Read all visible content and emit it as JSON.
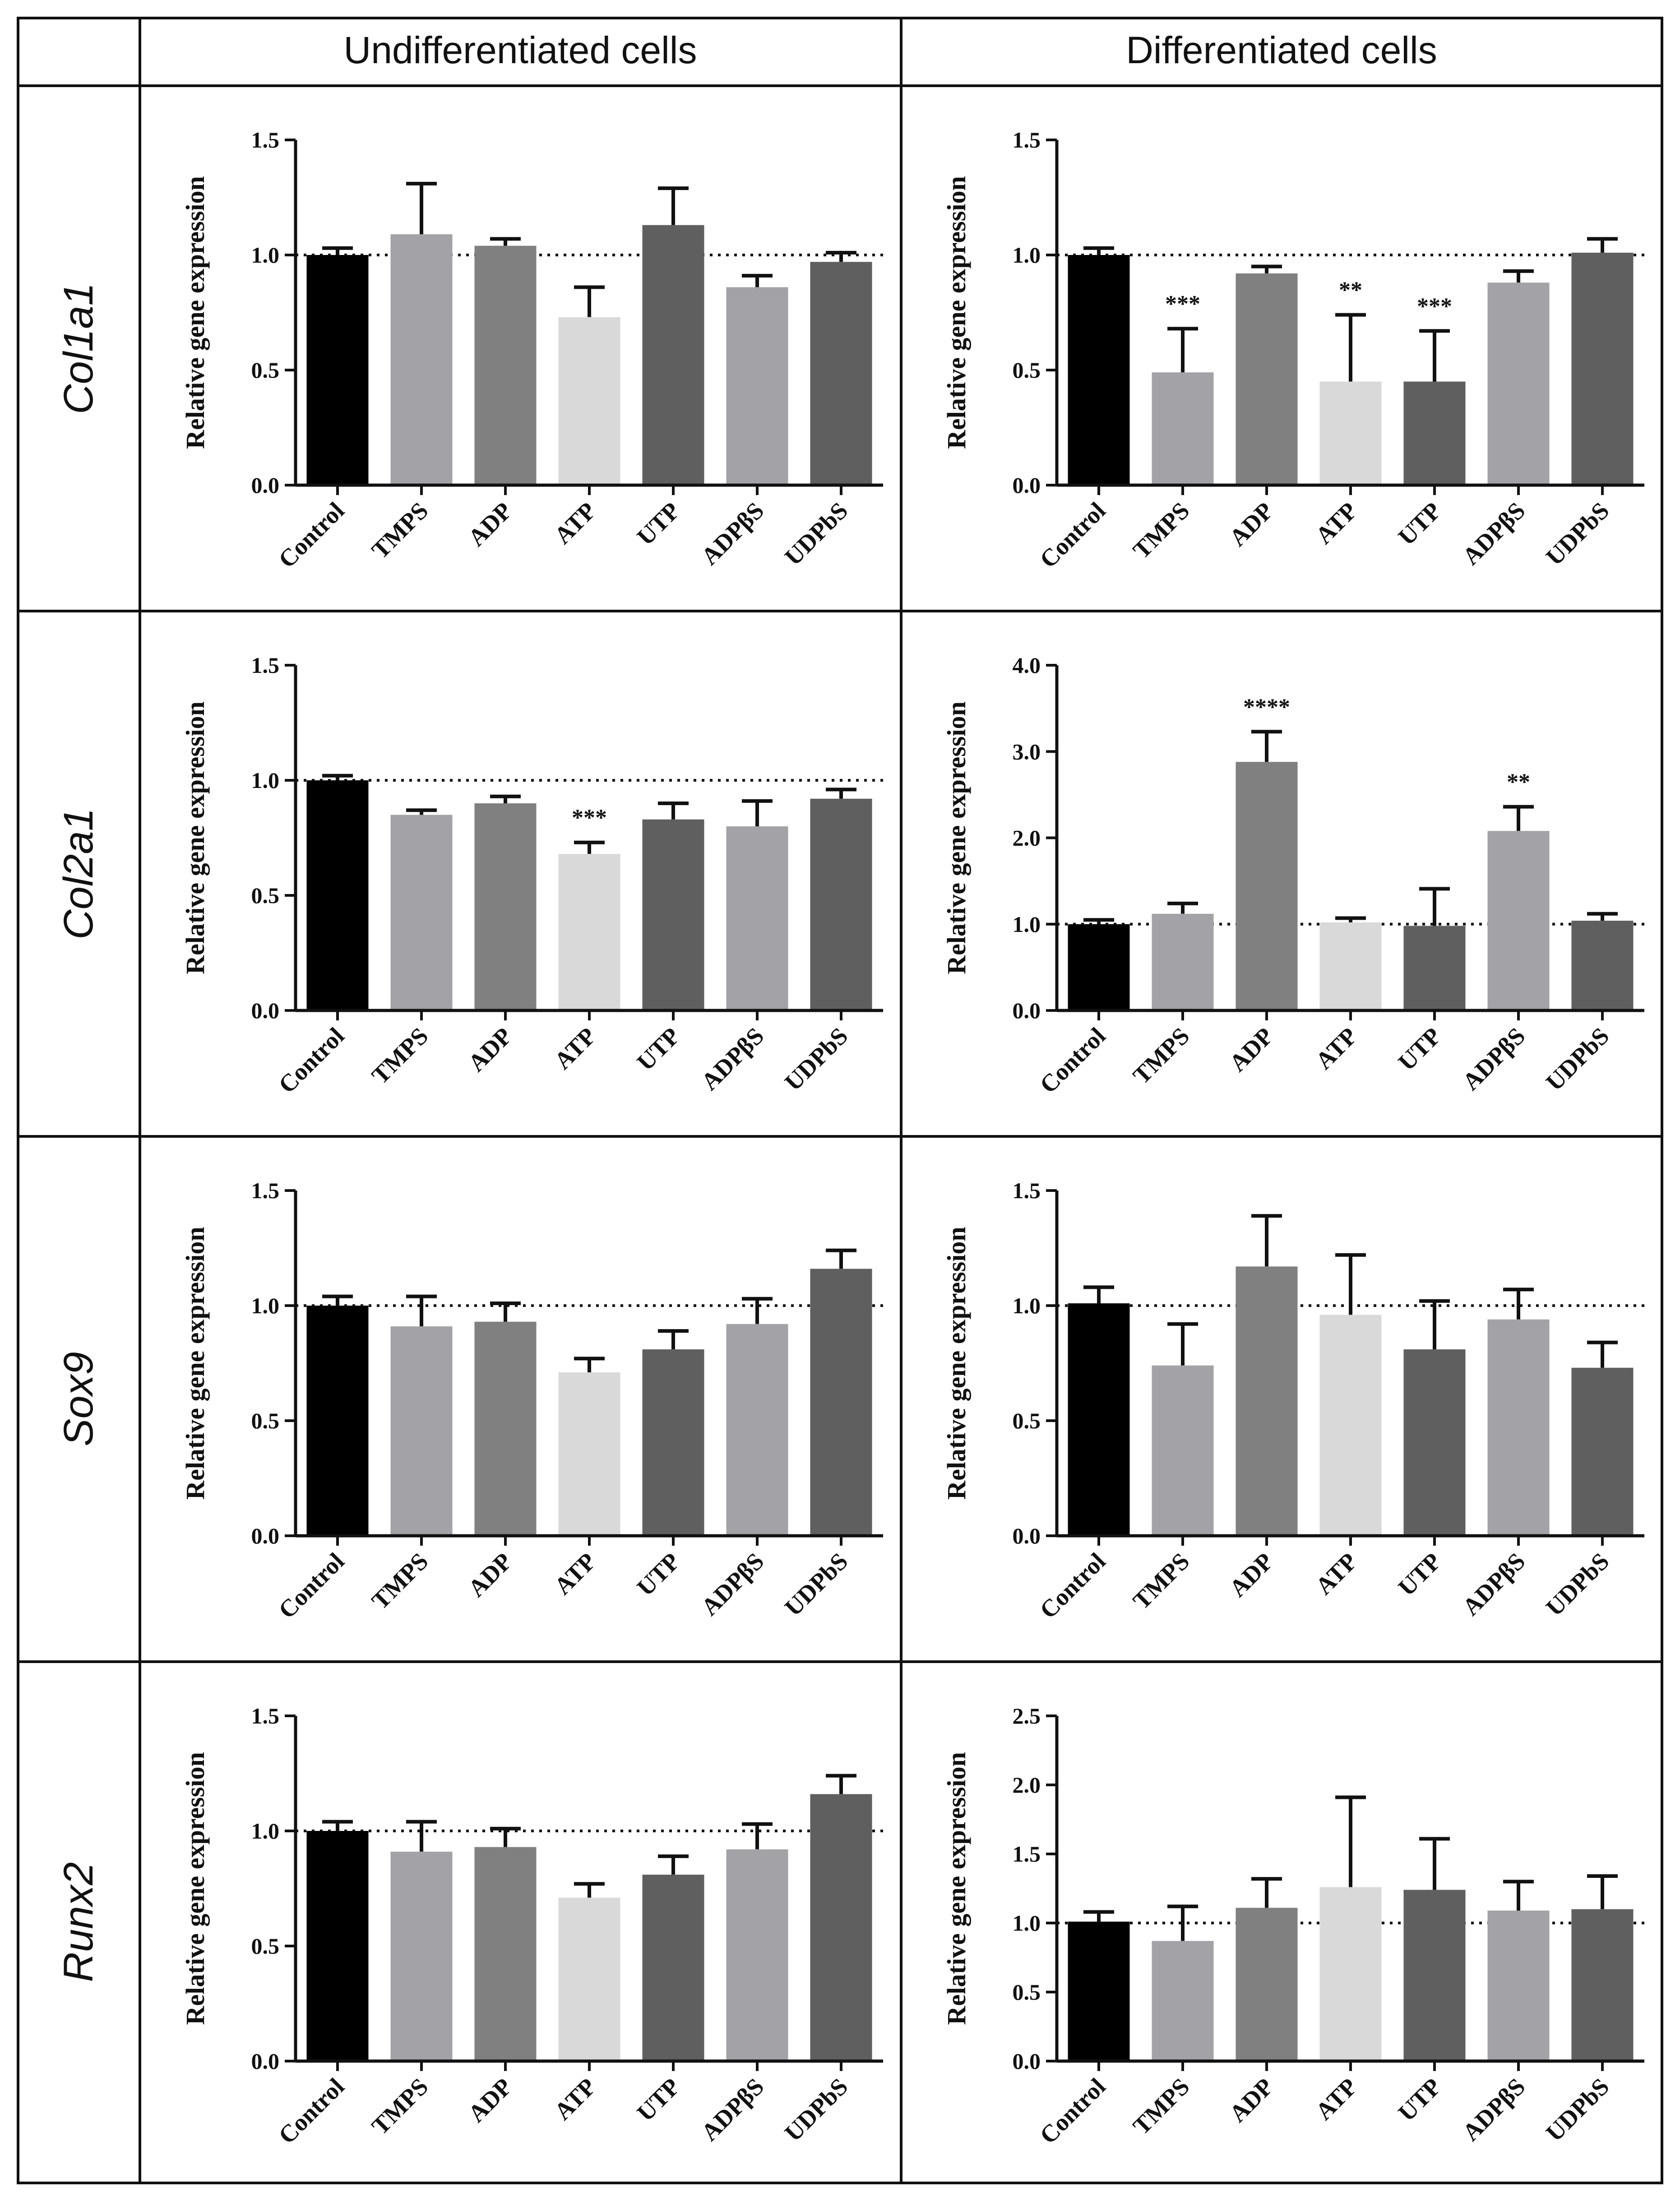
{
  "header": {
    "col1": "Undifferentiated cells",
    "col2": "Differentiated cells"
  },
  "rows": [
    "Col1a1",
    "Col2a1",
    "Sox9",
    "Runx2"
  ],
  "colors": {
    "Control": "#000000",
    "TMPS": "#a3a2a6",
    "ADP": "#808080",
    "ATP": "#d9d9d9",
    "UTP": "#5f5f5f",
    "ADPβS": "#a3a2a6",
    "UDPbS": "#5f5f5f"
  },
  "chart_data": [
    {
      "type": "bar",
      "gene": "Col1a1",
      "condition": "Undifferentiated cells",
      "ylabel": "Relative gene expression",
      "categories": [
        "Control",
        "TMPS",
        "ADP",
        "ATP",
        "UTP",
        "ADPβS",
        "UDPbS"
      ],
      "values": [
        1.0,
        1.09,
        1.04,
        0.73,
        1.13,
        0.86,
        0.97
      ],
      "errors": [
        0.03,
        0.22,
        0.03,
        0.13,
        0.16,
        0.05,
        0.04
      ],
      "significance": [
        "",
        "",
        "",
        "",
        "",
        "",
        ""
      ],
      "ylim": [
        0,
        1.5
      ],
      "yticks": [
        "0.0",
        "0.5",
        "1.0",
        "1.5"
      ],
      "reference_line": 1.0
    },
    {
      "type": "bar",
      "gene": "Col1a1",
      "condition": "Differentiated cells",
      "ylabel": "Relative gene expression",
      "categories": [
        "Control",
        "TMPS",
        "ADP",
        "ATP",
        "UTP",
        "ADPβS",
        "UDPbS"
      ],
      "values": [
        1.0,
        0.49,
        0.92,
        0.45,
        0.45,
        0.88,
        1.01
      ],
      "errors": [
        0.03,
        0.19,
        0.03,
        0.29,
        0.22,
        0.05,
        0.06
      ],
      "significance": [
        "",
        "***",
        "",
        "**",
        "***",
        "",
        ""
      ],
      "ylim": [
        0,
        1.5
      ],
      "yticks": [
        "0.0",
        "0.5",
        "1.0",
        "1.5"
      ],
      "reference_line": 1.0
    },
    {
      "type": "bar",
      "gene": "Col2a1",
      "condition": "Undifferentiated cells",
      "ylabel": "Relative gene expression",
      "categories": [
        "Control",
        "TMPS",
        "ADP",
        "ATP",
        "UTP",
        "ADPβS",
        "UDPbS"
      ],
      "values": [
        1.0,
        0.85,
        0.9,
        0.68,
        0.83,
        0.8,
        0.92
      ],
      "errors": [
        0.02,
        0.02,
        0.03,
        0.05,
        0.07,
        0.11,
        0.04
      ],
      "significance": [
        "",
        "",
        "",
        "***",
        "",
        "",
        ""
      ],
      "ylim": [
        0,
        1.5
      ],
      "yticks": [
        "0.0",
        "0.5",
        "1.0",
        "1.5"
      ],
      "reference_line": 1.0
    },
    {
      "type": "bar",
      "gene": "Col2a1",
      "condition": "Differentiated cells",
      "ylabel": "Relative gene expression",
      "categories": [
        "Control",
        "TMPS",
        "ADP",
        "ATP",
        "UTP",
        "ADPβS",
        "UDPbS"
      ],
      "values": [
        1.0,
        1.12,
        2.88,
        1.02,
        0.98,
        2.08,
        1.04
      ],
      "errors": [
        0.05,
        0.12,
        0.35,
        0.05,
        0.43,
        0.28,
        0.08
      ],
      "significance": [
        "",
        "",
        "****",
        "",
        "",
        "**",
        ""
      ],
      "ylim": [
        0,
        4.0
      ],
      "yticks": [
        "0.0",
        "1.0",
        "2.0",
        "3.0",
        "4.0"
      ],
      "reference_line": 1.0
    },
    {
      "type": "bar",
      "gene": "Sox9",
      "condition": "Undifferentiated cells",
      "ylabel": "Relative gene expression",
      "categories": [
        "Control",
        "TMPS",
        "ADP",
        "ATP",
        "UTP",
        "ADPβS",
        "UDPbS"
      ],
      "values": [
        1.0,
        0.91,
        0.93,
        0.71,
        0.81,
        0.92,
        1.16
      ],
      "errors": [
        0.04,
        0.13,
        0.08,
        0.06,
        0.08,
        0.11,
        0.08
      ],
      "significance": [
        "",
        "",
        "",
        "",
        "",
        "",
        ""
      ],
      "ylim": [
        0,
        1.5
      ],
      "yticks": [
        "0.0",
        "0.5",
        "1.0",
        "1.5"
      ],
      "reference_line": 1.0
    },
    {
      "type": "bar",
      "gene": "Sox9",
      "condition": "Differentiated cells",
      "ylabel": "Relative gene expression",
      "categories": [
        "Control",
        "TMPS",
        "ADP",
        "ATP",
        "UTP",
        "ADPβS",
        "UDPbS"
      ],
      "values": [
        1.01,
        0.74,
        1.17,
        0.96,
        0.81,
        0.94,
        0.73
      ],
      "errors": [
        0.07,
        0.18,
        0.22,
        0.26,
        0.21,
        0.13,
        0.11
      ],
      "significance": [
        "",
        "",
        "",
        "",
        "",
        "",
        ""
      ],
      "ylim": [
        0,
        1.5
      ],
      "yticks": [
        "0.0",
        "0.5",
        "1.0",
        "1.5"
      ],
      "reference_line": 1.0
    },
    {
      "type": "bar",
      "gene": "Runx2",
      "condition": "Undifferentiated cells",
      "ylabel": "Relative gene expression",
      "categories": [
        "Control",
        "TMPS",
        "ADP",
        "ATP",
        "UTP",
        "ADPβS",
        "UDPbS"
      ],
      "values": [
        1.0,
        0.91,
        0.93,
        0.71,
        0.81,
        0.92,
        1.16
      ],
      "errors": [
        0.04,
        0.13,
        0.08,
        0.06,
        0.08,
        0.11,
        0.08
      ],
      "significance": [
        "",
        "",
        "",
        "",
        "",
        "",
        ""
      ],
      "ylim": [
        0,
        1.5
      ],
      "yticks": [
        "0.0",
        "0.5",
        "1.0",
        "1.5"
      ],
      "reference_line": 1.0
    },
    {
      "type": "bar",
      "gene": "Runx2",
      "condition": "Differentiated cells",
      "ylabel": "Relative gene expression",
      "categories": [
        "Control",
        "TMPS",
        "ADP",
        "ATP",
        "UTP",
        "ADPβS",
        "UDPbS"
      ],
      "values": [
        1.01,
        0.87,
        1.11,
        1.26,
        1.24,
        1.09,
        1.1
      ],
      "errors": [
        0.07,
        0.25,
        0.21,
        0.65,
        0.37,
        0.21,
        0.24
      ],
      "significance": [
        "",
        "",
        "",
        "",
        "",
        "",
        ""
      ],
      "ylim": [
        0,
        2.5
      ],
      "yticks": [
        "0.0",
        "0.5",
        "1.0",
        "1.5",
        "2.0",
        "2.5"
      ],
      "reference_line": 1.0
    }
  ]
}
